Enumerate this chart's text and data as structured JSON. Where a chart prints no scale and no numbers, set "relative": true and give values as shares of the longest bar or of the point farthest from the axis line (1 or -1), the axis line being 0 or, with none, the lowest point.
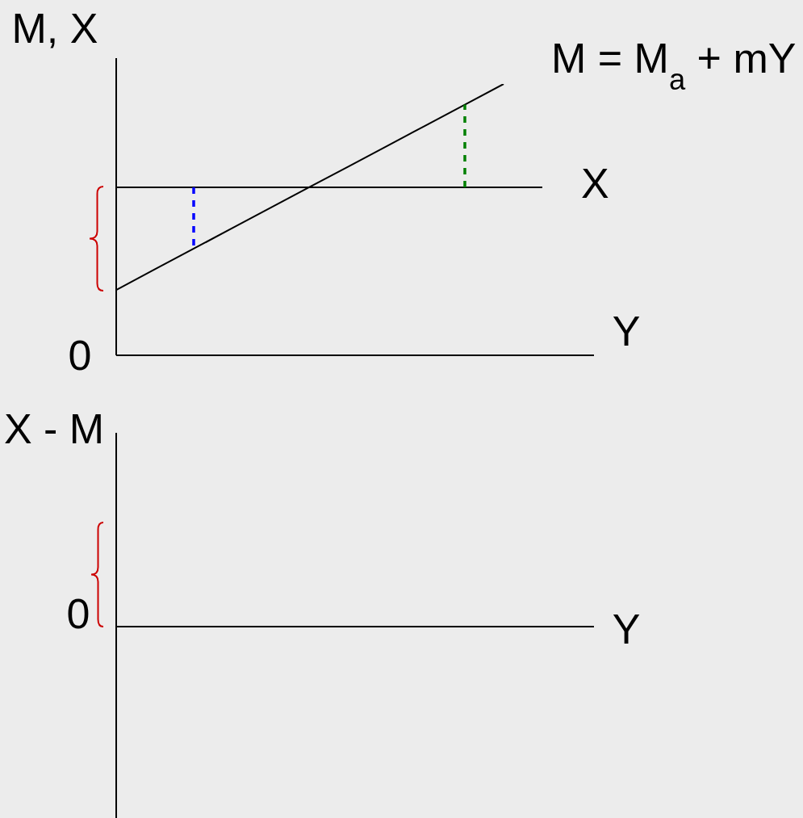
{
  "chart_data": [
    {
      "type": "line",
      "relative": true,
      "ylabel": "M, X",
      "xlabel": "Y",
      "marker": "none",
      "line_style": "solid",
      "categories": [
        null,
        null,
        null,
        null,
        null,
        null,
        null,
        null,
        null,
        null,
        null,
        null,
        null
      ],
      "series": [
        {
          "name": "M = M$_{a}$ + mY",
          "color": "#000000",
          "values": [
            0.241,
            0.317,
            0.393,
            0.469,
            0.545,
            0.621,
            0.696,
            0.772,
            0.848,
            0.924,
            1,
            null,
            null
          ]
        },
        {
          "name": "X",
          "color": "#000000",
          "values": [
            0.619,
            0.619,
            0.619,
            0.619,
            0.619,
            0.619,
            0.619,
            0.619,
            0.619,
            0.619,
            0.619,
            0.619,
            null
          ]
        }
      ],
      "annotations": [
        "0"
      ]
    },
    {
      "type": "other",
      "ylabel": "X - M",
      "xlabel": "Y",
      "annotations": [
        "0"
      ]
    }
  ]
}
